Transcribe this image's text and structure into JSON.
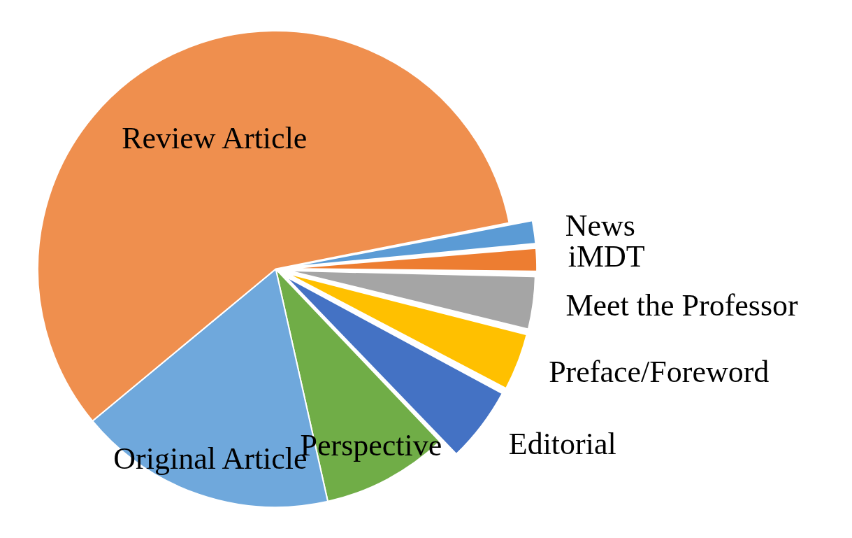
{
  "chart_data": {
    "type": "pie",
    "categories": [
      "News",
      "iMDT",
      "Meet the Professor",
      "Preface/Foreword",
      "Editorial",
      "Perspective",
      "Original Article",
      "Review Article"
    ],
    "values": [
      1.7,
      1.7,
      3.6,
      3.9,
      5.1,
      8.6,
      17.5,
      57.9
    ],
    "colors": [
      "#5b9bd5",
      "#ed7d31",
      "#a5a5a5",
      "#ffc000",
      "#4472c4",
      "#70ad47",
      "#6fa8dc",
      "#ef8f4e"
    ],
    "data_labels": false,
    "legend": false
  }
}
